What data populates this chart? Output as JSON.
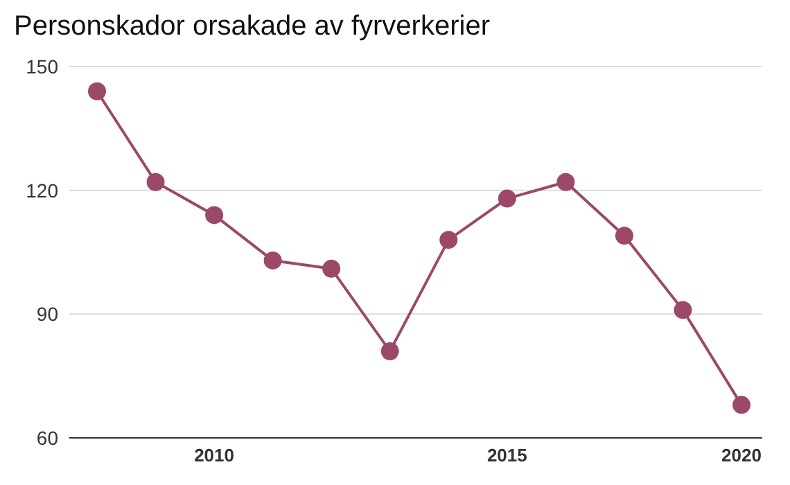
{
  "chart_data": {
    "type": "line",
    "title": "Personskador orsakade av fyrverkerier",
    "categories": [
      null,
      null,
      "2010",
      null,
      null,
      null,
      null,
      "2015",
      null,
      null,
      null,
      "2020"
    ],
    "series": [
      {
        "color": "#9c4868",
        "values": [
          144,
          122,
          114,
          103,
          101,
          81,
          108,
          118,
          122,
          109,
          91,
          68
        ]
      }
    ],
    "ylim": [
      60,
      150
    ],
    "yticks": [
      60,
      90,
      120,
      150
    ],
    "grid": "y",
    "marker": "circle",
    "line_style": "solid"
  }
}
